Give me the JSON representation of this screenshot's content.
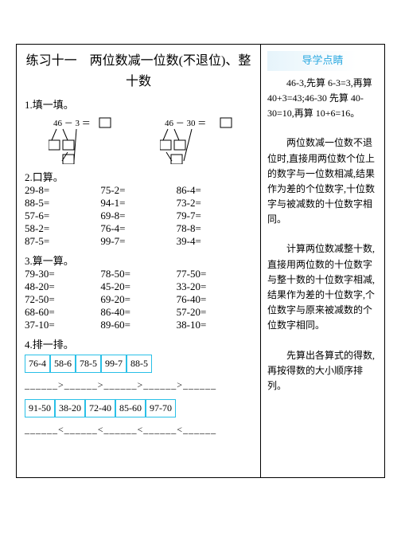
{
  "main": {
    "title": "练习十一　两位数减一位数(不退位)、整十数",
    "q1": "1.填一填。",
    "d1": {
      "expr": "46 － 3 ＝"
    },
    "d2": {
      "expr": "46 － 30 ＝"
    },
    "q2": "2.口算。",
    "calc2": [
      [
        "29-8=",
        "75-2=",
        "86-4="
      ],
      [
        "88-5=",
        "94-1=",
        "73-2="
      ],
      [
        "57-6=",
        "69-8=",
        "79-7="
      ],
      [
        "58-2=",
        "76-4=",
        "78-8="
      ],
      [
        "87-5=",
        "99-7=",
        "39-4="
      ]
    ],
    "q3": "3.算一算。",
    "calc3": [
      [
        "79-30=",
        "78-50=",
        "77-50="
      ],
      [
        "48-20=",
        "45-20=",
        "33-20="
      ],
      [
        "72-50=",
        "69-20=",
        "76-40="
      ],
      [
        "68-60=",
        "86-40=",
        "57-20="
      ],
      [
        "37-10=",
        "89-60=",
        "38-10="
      ]
    ],
    "q4": "4.排一排。",
    "boxrow1": [
      "76-4",
      "58-6",
      "78-5",
      "99-7",
      "88-5"
    ],
    "cmp1": "______>______>______>______>______",
    "boxrow2": [
      "91-50",
      "38-20",
      "72-40",
      "85-60",
      "97-70"
    ],
    "cmp2": "______<______<______<______<______"
  },
  "side": {
    "title": "导学点睛",
    "p1": "46-3,先算 6-3=3,再算 40+3=43;46-30 先算 40-30=10,再算 10+6=16。",
    "p2": "两位数减一位数不退位时,直接用两位数个位上的数字与一位数相减,结果作为差的个位数字,十位数字与被减数的十位数字相同。",
    "p3": "计算两位数减整十数,直接用两位数的十位数字与整十数的十位数字相减,结果作为差的十位数字,个位数字与原来被减数的个位数字相同。",
    "p4": "先算出各算式的得数,再按得数的大小顺序排列。"
  }
}
